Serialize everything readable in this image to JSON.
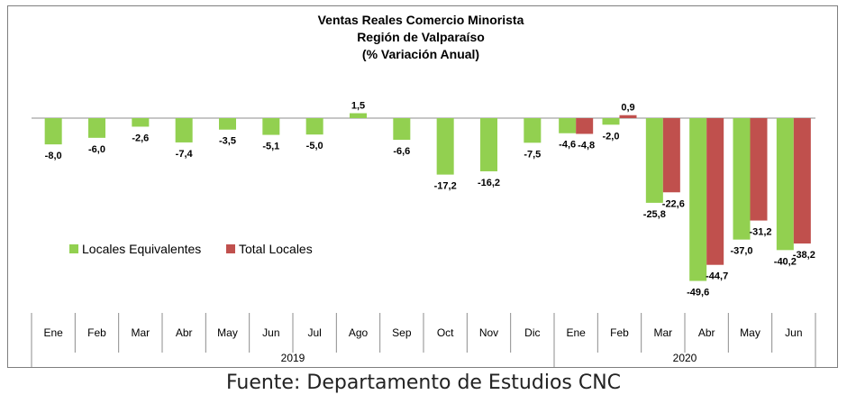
{
  "chart_data": {
    "type": "bar",
    "title": [
      "Ventas Reales Comercio Minorista",
      "Región de Valparaíso",
      "(% Variación Anual)"
    ],
    "categories": [
      "Ene",
      "Feb",
      "Mar",
      "Abr",
      "May",
      "Jun",
      "Jul",
      "Ago",
      "Sep",
      "Oct",
      "Nov",
      "Dic",
      "Ene",
      "Feb",
      "Mar",
      "Abr",
      "May",
      "Jun"
    ],
    "years": [
      {
        "label": "2019",
        "from": 0,
        "to": 11
      },
      {
        "label": "2020",
        "from": 12,
        "to": 17
      }
    ],
    "series": [
      {
        "name": "Locales Equivalentes",
        "color": "#92d050",
        "values": [
          -8.0,
          -6.0,
          -2.6,
          -7.4,
          -3.5,
          -5.1,
          -5.0,
          1.5,
          -6.6,
          -17.2,
          -16.2,
          -7.5,
          -4.6,
          -2.0,
          -25.8,
          -49.6,
          -37.0,
          -40.2
        ],
        "labels": [
          "-8,0",
          "-6,0",
          "-2,6",
          "-7,4",
          "-3,5",
          "-5,1",
          "-5,0",
          "1,5",
          "-6,6",
          "-17,2",
          "-16,2",
          "-7,5",
          "-4,6",
          "-2,0",
          "-25,8",
          "-49,6",
          "-37,0",
          "-40,2"
        ]
      },
      {
        "name": "Total Locales",
        "color": "#c0504d",
        "values": [
          null,
          null,
          null,
          null,
          null,
          null,
          null,
          null,
          null,
          null,
          null,
          null,
          -4.8,
          0.9,
          -22.6,
          -44.7,
          -31.2,
          -38.2
        ],
        "labels": [
          "",
          "",
          "",
          "",
          "",
          "",
          "",
          "",
          "",
          "",
          "",
          "",
          "-4,8",
          "0,9",
          "-22,6",
          "-44,7",
          "-31,2",
          "-38,2"
        ]
      }
    ],
    "legend_placement": "left",
    "grid": false
  },
  "footer": {
    "source": "Fuente: Departamento de Estudios CNC"
  }
}
